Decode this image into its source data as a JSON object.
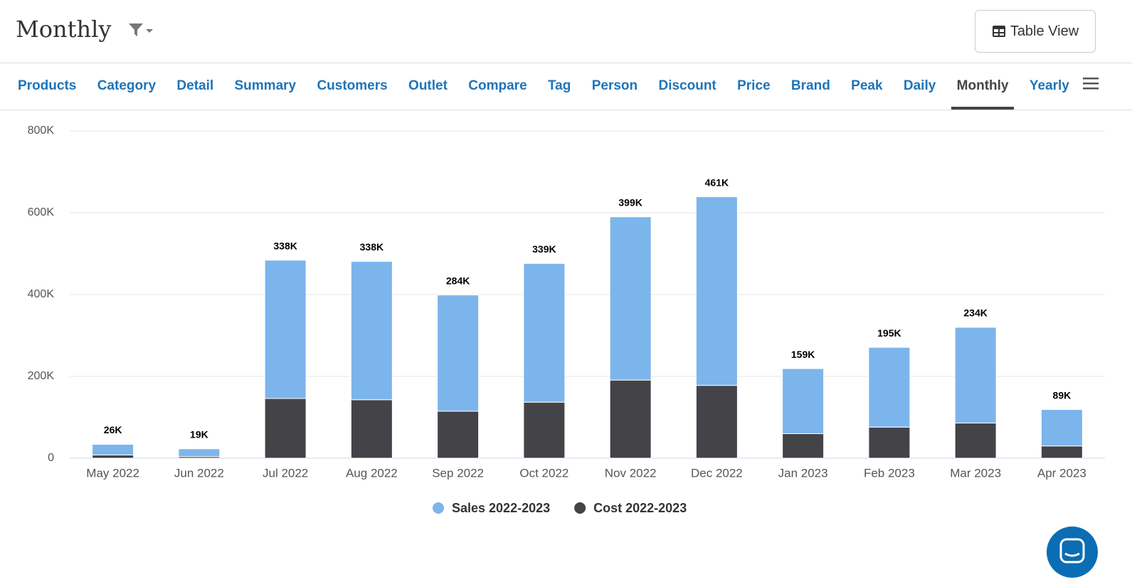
{
  "header": {
    "title": "Monthly",
    "button": "Table View"
  },
  "tabs": {
    "items": [
      "Products",
      "Category",
      "Detail",
      "Summary",
      "Customers",
      "Outlet",
      "Compare",
      "Tag",
      "Person",
      "Discount",
      "Price",
      "Brand",
      "Peak",
      "Daily",
      "Monthly",
      "Yearly"
    ],
    "active": 14
  },
  "chart_data": {
    "type": "bar",
    "stacked": true,
    "categories": [
      "May 2022",
      "Jun 2022",
      "Jul 2022",
      "Aug 2022",
      "Sep 2022",
      "Oct 2022",
      "Nov 2022",
      "Dec 2022",
      "Jan 2023",
      "Feb 2023",
      "Mar 2023",
      "Apr 2023"
    ],
    "series": [
      {
        "name": "Sales 2022-2023",
        "color": "#7cb5ec",
        "values": [
          26000,
          19000,
          338000,
          338000,
          284000,
          339000,
          399000,
          461000,
          159000,
          195000,
          234000,
          89000
        ],
        "value_labels": [
          "26K",
          "19K",
          "338K",
          "338K",
          "284K",
          "339K",
          "399K",
          "461K",
          "159K",
          "195K",
          "234K",
          "89K"
        ]
      },
      {
        "name": "Cost 2022-2023",
        "color": "#434348",
        "values": [
          8000,
          4000,
          146000,
          143000,
          115000,
          137000,
          191000,
          178000,
          60000,
          76000,
          86000,
          30000
        ]
      }
    ],
    "ylim": [
      0,
      800000
    ],
    "yticks": [
      0,
      {
        "value": 200000,
        "label": "200K"
      },
      {
        "value": 400000,
        "label": "400K"
      },
      {
        "value": 600000,
        "label": "600K"
      },
      {
        "value": 800000,
        "label": "800K"
      }
    ],
    "grid": true,
    "legend": "bottom"
  }
}
